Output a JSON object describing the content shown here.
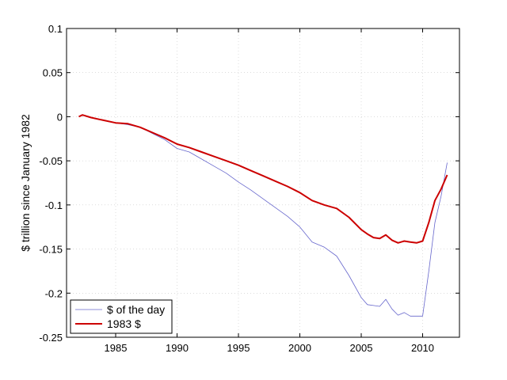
{
  "chart_data": {
    "type": "line",
    "title": "",
    "xlabel": "",
    "ylabel": "$ trillion since January 1982",
    "xlim": [
      1981,
      2013
    ],
    "ylim": [
      -0.25,
      0.1
    ],
    "xticks": [
      1985,
      1990,
      1995,
      2000,
      2005,
      2010
    ],
    "xtick_labels": [
      "1985",
      "1990",
      "1995",
      "2000",
      "2005",
      "2010"
    ],
    "yticks": [
      0.1,
      0.05,
      0,
      -0.05,
      -0.1,
      -0.15,
      -0.2,
      -0.25
    ],
    "ytick_labels": [
      "0.1",
      "0.05",
      "0",
      "-0.05",
      "-0.1",
      "-0.15",
      "-0.2",
      "-0.25"
    ],
    "grid": true,
    "legend_position": "bottom-left",
    "series": [
      {
        "name": "$ of the day",
        "color": "#6666cc",
        "x": [
          1982.0,
          1982.3,
          1983.0,
          1984.0,
          1985.0,
          1986.0,
          1987.0,
          1988.0,
          1989.0,
          1990.0,
          1991.0,
          1992.0,
          1993.0,
          1994.0,
          1995.0,
          1996.0,
          1997.0,
          1998.0,
          1999.0,
          2000.0,
          2001.0,
          2002.0,
          2003.0,
          2004.0,
          2005.0,
          2005.5,
          2006.0,
          2006.5,
          2007.0,
          2007.5,
          2008.0,
          2008.5,
          2009.0,
          2009.5,
          2010.0,
          2010.5,
          2011.0,
          2011.5,
          2012.0
        ],
        "y": [
          0.0,
          0.002,
          -0.001,
          -0.004,
          -0.007,
          -0.009,
          -0.012,
          -0.019,
          -0.026,
          -0.036,
          -0.04,
          -0.048,
          -0.056,
          -0.064,
          -0.074,
          -0.083,
          -0.093,
          -0.103,
          -0.113,
          -0.125,
          -0.142,
          -0.148,
          -0.158,
          -0.18,
          -0.205,
          -0.213,
          -0.214,
          -0.215,
          -0.207,
          -0.218,
          -0.225,
          -0.222,
          -0.226,
          -0.226,
          -0.226,
          -0.175,
          -0.12,
          -0.09,
          -0.052
        ]
      },
      {
        "name": "1983 $",
        "color": "#cc0000",
        "x": [
          1982.0,
          1982.3,
          1983.0,
          1984.0,
          1985.0,
          1986.0,
          1987.0,
          1988.0,
          1989.0,
          1990.0,
          1991.0,
          1992.0,
          1993.0,
          1994.0,
          1995.0,
          1996.0,
          1997.0,
          1998.0,
          1999.0,
          2000.0,
          2001.0,
          2002.0,
          2003.0,
          2004.0,
          2005.0,
          2005.5,
          2006.0,
          2006.5,
          2007.0,
          2007.5,
          2008.0,
          2008.5,
          2009.0,
          2009.5,
          2010.0,
          2010.5,
          2011.0,
          2011.5,
          2012.0
        ],
        "y": [
          0.0,
          0.002,
          -0.001,
          -0.004,
          -0.007,
          -0.008,
          -0.012,
          -0.018,
          -0.024,
          -0.031,
          -0.035,
          -0.04,
          -0.045,
          -0.05,
          -0.055,
          -0.061,
          -0.067,
          -0.073,
          -0.079,
          -0.086,
          -0.095,
          -0.1,
          -0.104,
          -0.114,
          -0.128,
          -0.133,
          -0.137,
          -0.138,
          -0.134,
          -0.14,
          -0.143,
          -0.141,
          -0.142,
          -0.143,
          -0.141,
          -0.12,
          -0.095,
          -0.082,
          -0.066
        ]
      }
    ]
  }
}
